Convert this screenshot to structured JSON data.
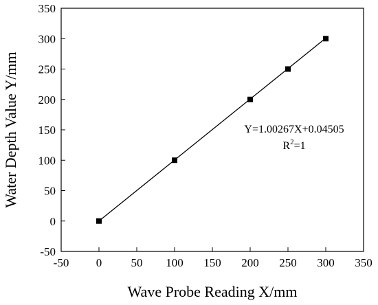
{
  "chart_data": {
    "type": "scatter",
    "xlabel": "Wave Probe Reading X/mm",
    "ylabel": "Water Depth Value Y/mm",
    "xlim": [
      -50,
      350
    ],
    "ylim": [
      -50,
      350
    ],
    "xticks": [
      -50,
      0,
      50,
      100,
      150,
      200,
      250,
      300,
      350
    ],
    "yticks": [
      -50,
      0,
      50,
      100,
      150,
      200,
      250,
      300,
      350
    ],
    "series": [
      {
        "marker": "square",
        "color": "#000000",
        "x": [
          0,
          100,
          200,
          250,
          300
        ],
        "y": [
          0,
          100,
          200,
          250,
          300
        ]
      }
    ],
    "fit_line": {
      "slope": 1.00267,
      "intercept": 0.04505,
      "x_range": [
        0,
        300
      ],
      "color": "#000000"
    },
    "annotations": {
      "equation": "Y=1.00267X+0.04505",
      "r2_base": "R",
      "r2_sup": "2",
      "r2_rest": "=1"
    }
  }
}
